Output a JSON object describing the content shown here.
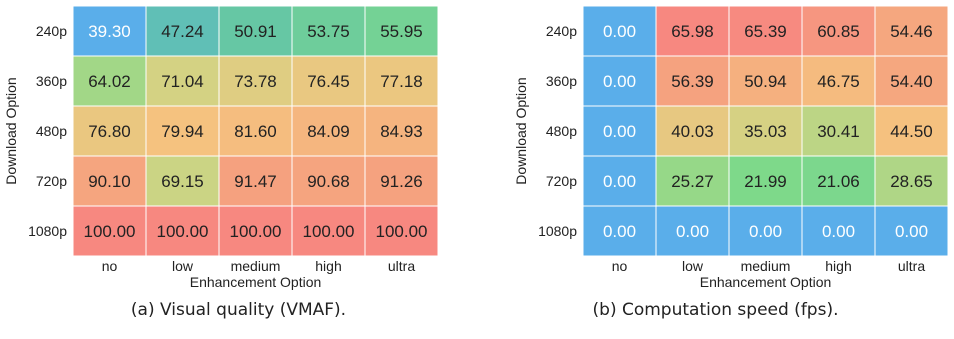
{
  "chart_data": [
    {
      "type": "heatmap",
      "caption": "(a) Visual quality (VMAF).",
      "xlabel": "Enhancement Option",
      "ylabel": "Download Option",
      "x_categories": [
        "no",
        "low",
        "medium",
        "high",
        "ultra"
      ],
      "y_categories": [
        "240p",
        "360p",
        "480p",
        "720p",
        "1080p"
      ],
      "values": [
        [
          39.3,
          47.24,
          50.91,
          53.75,
          55.95
        ],
        [
          64.02,
          71.04,
          73.78,
          76.45,
          77.18
        ],
        [
          76.8,
          79.94,
          81.6,
          84.09,
          84.93
        ],
        [
          90.1,
          69.15,
          91.47,
          90.68,
          91.26
        ],
        [
          100.0,
          100.0,
          100.0,
          100.0,
          100.0
        ]
      ],
      "value_range": [
        39.3,
        100.0
      ],
      "colormap": [
        "#5aaeea",
        "#62c4a8",
        "#7ed98a",
        "#cfd484",
        "#f5c27f",
        "#f5a67f",
        "#f78880"
      ]
    },
    {
      "type": "heatmap",
      "caption": "(b) Computation speed (fps).",
      "xlabel": "Enhancement Option",
      "ylabel": "Download Option",
      "x_categories": [
        "no",
        "low",
        "medium",
        "high",
        "ultra"
      ],
      "y_categories": [
        "240p",
        "360p",
        "480p",
        "720p",
        "1080p"
      ],
      "values": [
        [
          0.0,
          65.98,
          65.39,
          60.85,
          54.46
        ],
        [
          0.0,
          56.39,
          50.94,
          46.75,
          54.4
        ],
        [
          0.0,
          40.03,
          35.03,
          30.41,
          44.5
        ],
        [
          0.0,
          25.27,
          21.99,
          21.06,
          28.65
        ],
        [
          0.0,
          0.0,
          0.0,
          0.0,
          0.0
        ]
      ],
      "value_range": [
        0.0,
        65.98
      ],
      "colormap": [
        "#5aaeea",
        "#62c4a8",
        "#7ed98a",
        "#cfd484",
        "#f5c27f",
        "#f5a67f",
        "#f78880"
      ]
    }
  ]
}
